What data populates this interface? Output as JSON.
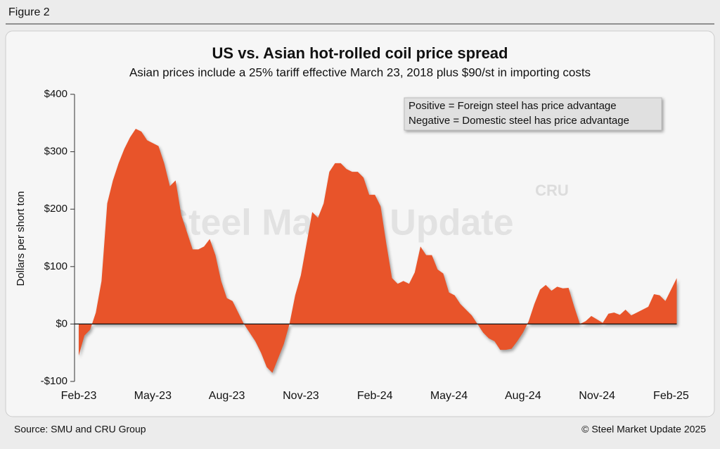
{
  "figure_label": "Figure 2",
  "source": "Source: SMU and CRU Group",
  "copyright": "© Steel Market Update 2025",
  "chart_data": {
    "type": "area",
    "title": "US vs. Asian hot-rolled coil price spread",
    "subtitle": "Asian prices include a 25% tariff effective March 23, 2018 plus $90/st in importing costs",
    "y_label": "Dollars per short ton",
    "annotations": [
      "Positive = Foreign steel has price advantage",
      "Negative = Domestic steel has price advantage"
    ],
    "watermark": [
      "Steel Market Update",
      "CRU"
    ],
    "color": "#e8542a",
    "ylim": [
      -100,
      400
    ],
    "yticks": [
      {
        "value": -100,
        "label": "-$100"
      },
      {
        "value": 0,
        "label": "$0"
      },
      {
        "value": 100,
        "label": "$100"
      },
      {
        "value": 200,
        "label": "$200"
      },
      {
        "value": 300,
        "label": "$300"
      },
      {
        "value": 400,
        "label": "$400"
      }
    ],
    "categories": [
      "Feb-23",
      null,
      null,
      null,
      null,
      null,
      null,
      null,
      null,
      null,
      null,
      null,
      null,
      "May-23",
      null,
      null,
      null,
      null,
      null,
      null,
      null,
      null,
      null,
      null,
      null,
      null,
      "Aug-23",
      null,
      null,
      null,
      null,
      null,
      null,
      null,
      null,
      null,
      null,
      null,
      null,
      "Nov-23",
      null,
      null,
      null,
      null,
      null,
      null,
      null,
      null,
      null,
      null,
      null,
      null,
      "Feb-24",
      null,
      null,
      null,
      null,
      null,
      null,
      null,
      null,
      null,
      null,
      null,
      null,
      "May-24",
      null,
      null,
      null,
      null,
      null,
      null,
      null,
      null,
      null,
      null,
      null,
      null,
      "Aug-24",
      null,
      null,
      null,
      null,
      null,
      null,
      null,
      null,
      null,
      null,
      null,
      null,
      "Nov-24",
      null,
      null,
      null,
      null,
      null,
      null,
      null,
      null,
      null,
      null,
      null,
      null,
      "Feb-25",
      null
    ],
    "values": [
      -55,
      -20,
      -10,
      20,
      75,
      210,
      250,
      280,
      305,
      325,
      340,
      335,
      320,
      315,
      310,
      280,
      240,
      250,
      190,
      160,
      130,
      130,
      135,
      148,
      120,
      75,
      45,
      40,
      20,
      0,
      -15,
      -30,
      -50,
      -75,
      -85,
      -60,
      -35,
      0,
      50,
      85,
      140,
      195,
      185,
      210,
      265,
      280,
      280,
      270,
      265,
      265,
      255,
      225,
      225,
      205,
      140,
      80,
      70,
      75,
      70,
      90,
      135,
      120,
      120,
      95,
      88,
      55,
      50,
      35,
      25,
      15,
      0,
      -15,
      -25,
      -30,
      -45,
      -45,
      -43,
      -30,
      -15,
      5,
      35,
      60,
      68,
      58,
      65,
      62,
      63,
      30,
      0,
      5,
      14,
      8,
      2,
      18,
      20,
      16,
      25,
      15,
      20,
      25,
      30,
      52,
      50,
      40,
      60,
      80
    ]
  }
}
